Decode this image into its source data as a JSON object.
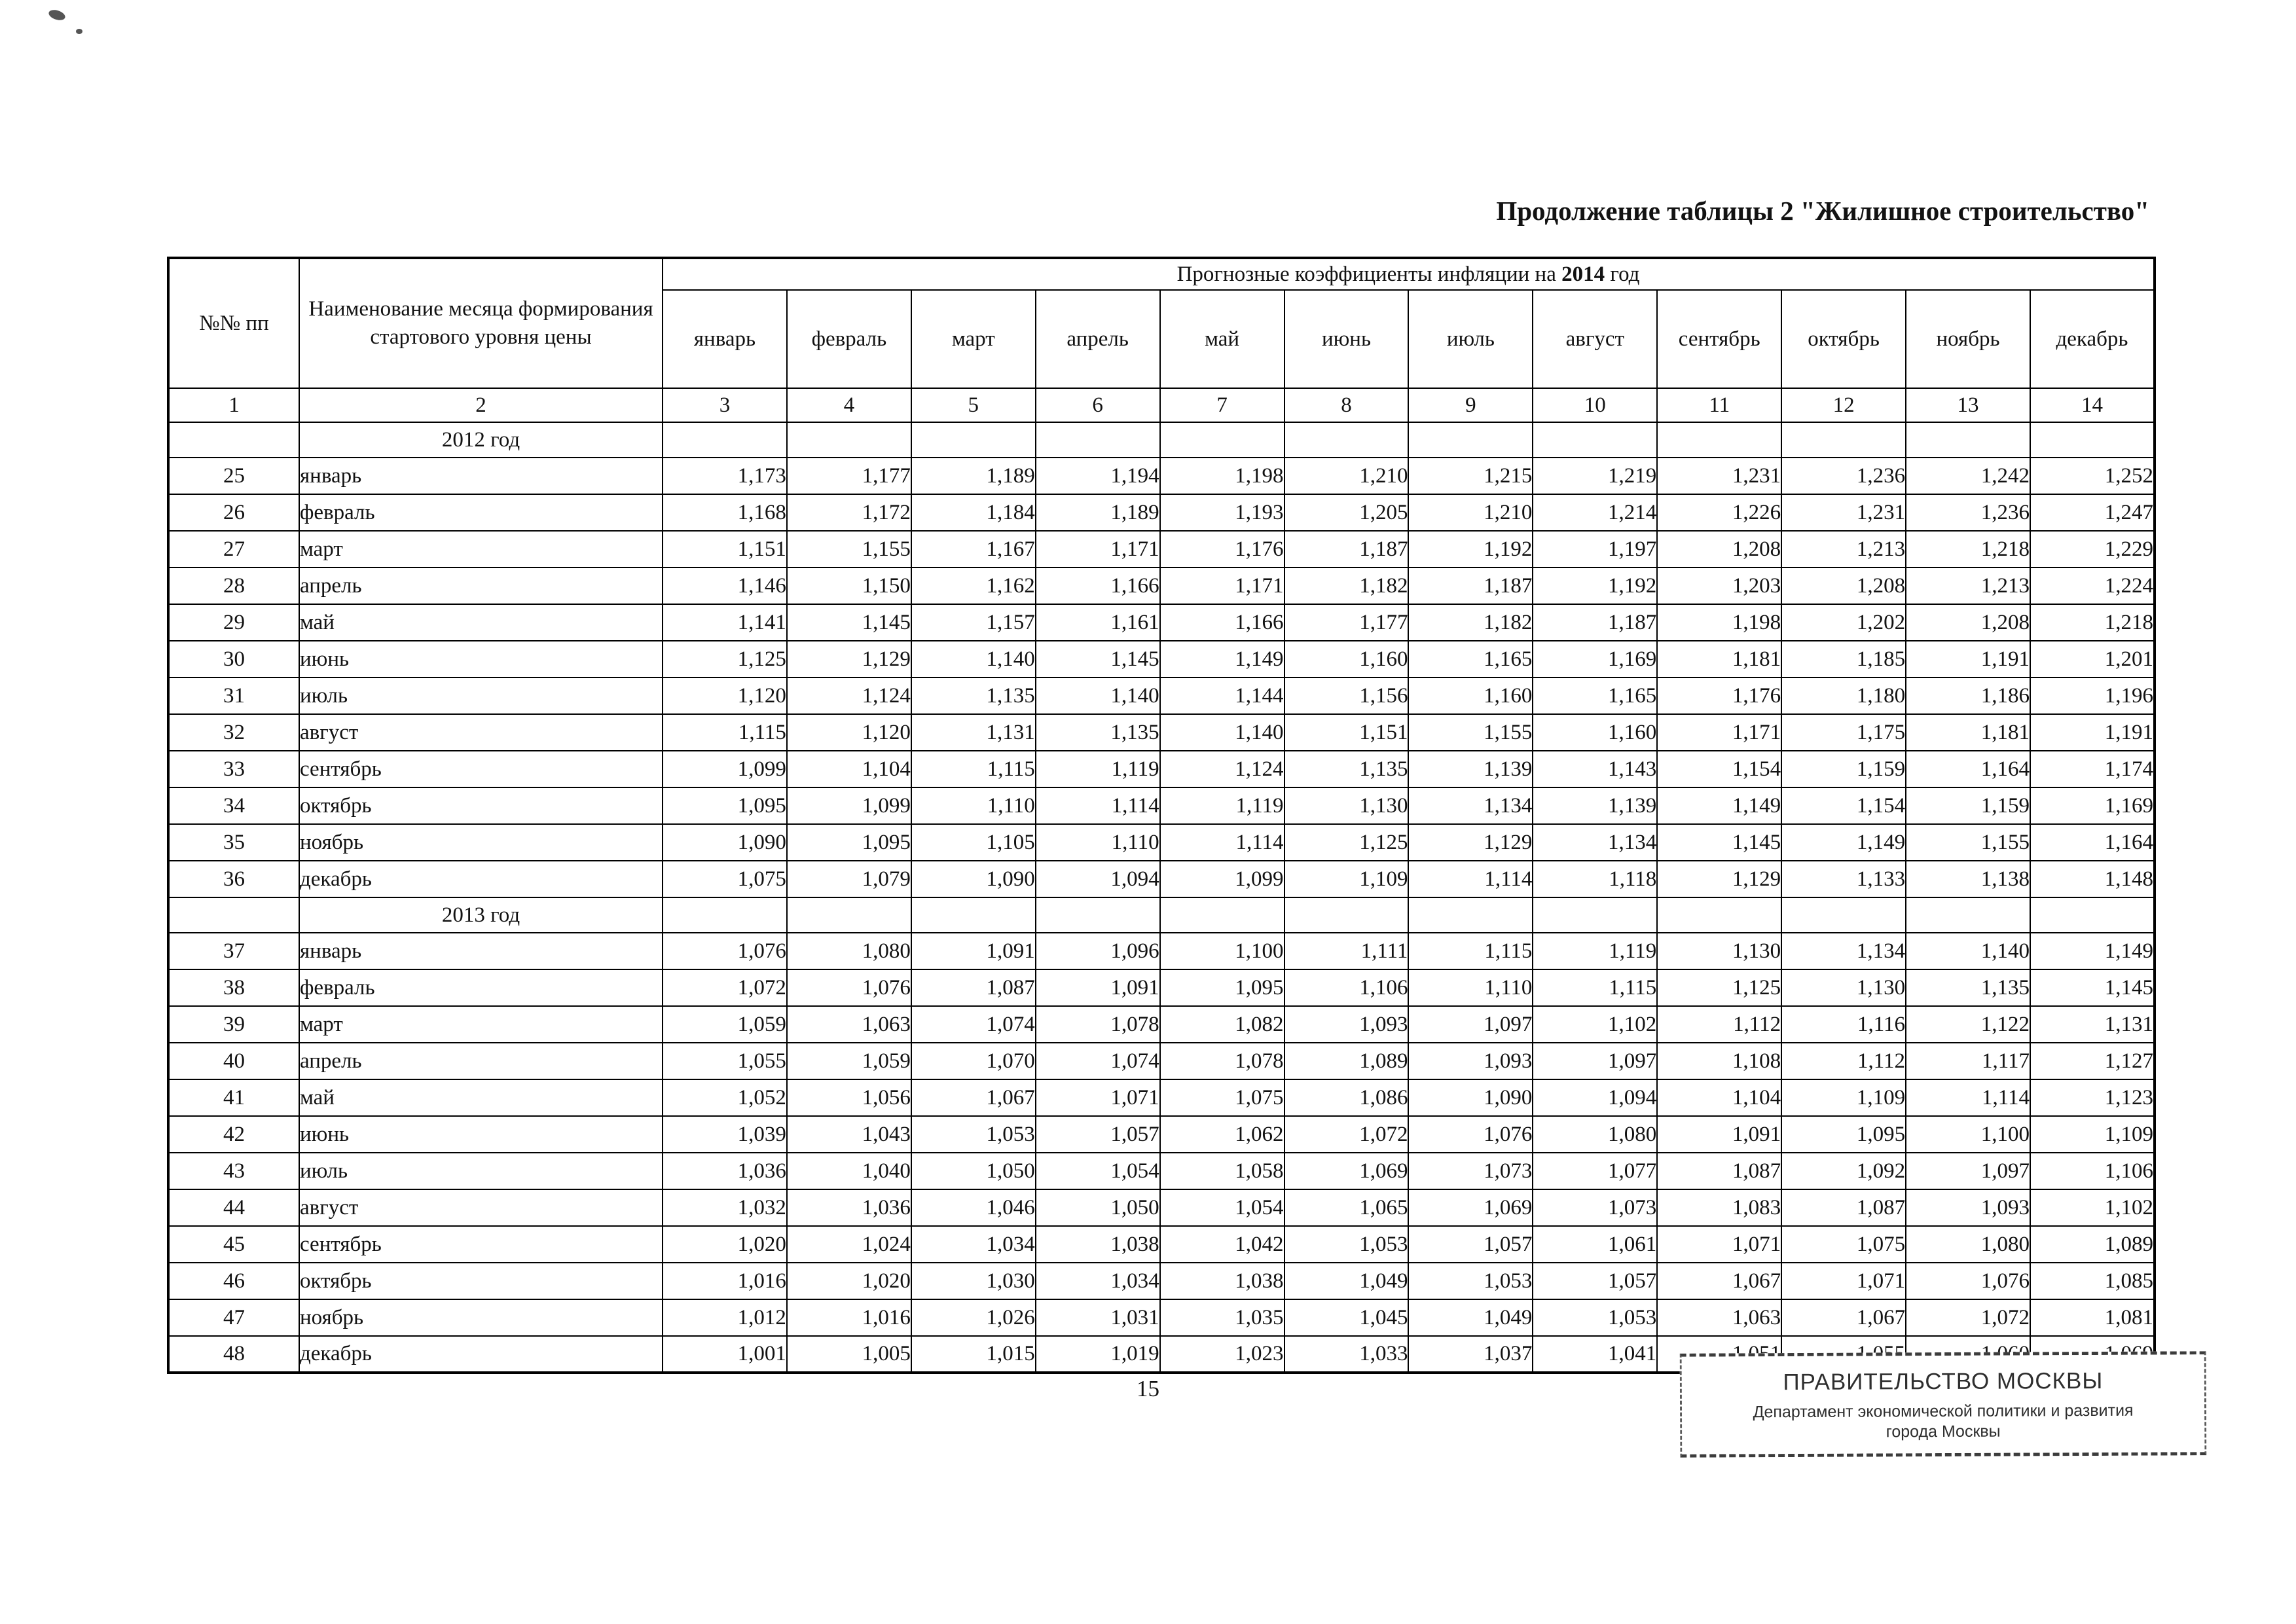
{
  "page": {
    "title": "Продолжение таблицы 2  \"Жилишное строительство\"",
    "page_number": "15"
  },
  "table": {
    "header": {
      "col_num": "№№ пп",
      "col_month": "Наименование месяца формирования стартового уровня цены",
      "group_title_prefix": "Прогнозные коэффициенты инфляции на ",
      "group_title_year": "2014",
      "group_title_suffix": " год",
      "months": [
        "январь",
        "февраль",
        "март",
        "апрель",
        "май",
        "июнь",
        "июль",
        "август",
        "сентябрь",
        "октябрь",
        "ноябрь",
        "декабрь"
      ],
      "column_numbers": [
        "1",
        "2",
        "3",
        "4",
        "5",
        "6",
        "7",
        "8",
        "9",
        "10",
        "11",
        "12",
        "13",
        "14"
      ]
    },
    "sections": [
      {
        "year_label": "2012 год",
        "rows": [
          {
            "num": "25",
            "month": "январь",
            "values": [
              "1,173",
              "1,177",
              "1,189",
              "1,194",
              "1,198",
              "1,210",
              "1,215",
              "1,219",
              "1,231",
              "1,236",
              "1,242",
              "1,252"
            ]
          },
          {
            "num": "26",
            "month": "февраль",
            "values": [
              "1,168",
              "1,172",
              "1,184",
              "1,189",
              "1,193",
              "1,205",
              "1,210",
              "1,214",
              "1,226",
              "1,231",
              "1,236",
              "1,247"
            ]
          },
          {
            "num": "27",
            "month": "март",
            "values": [
              "1,151",
              "1,155",
              "1,167",
              "1,171",
              "1,176",
              "1,187",
              "1,192",
              "1,197",
              "1,208",
              "1,213",
              "1,218",
              "1,229"
            ]
          },
          {
            "num": "28",
            "month": "апрель",
            "values": [
              "1,146",
              "1,150",
              "1,162",
              "1,166",
              "1,171",
              "1,182",
              "1,187",
              "1,192",
              "1,203",
              "1,208",
              "1,213",
              "1,224"
            ]
          },
          {
            "num": "29",
            "month": "май",
            "values": [
              "1,141",
              "1,145",
              "1,157",
              "1,161",
              "1,166",
              "1,177",
              "1,182",
              "1,187",
              "1,198",
              "1,202",
              "1,208",
              "1,218"
            ]
          },
          {
            "num": "30",
            "month": "июнь",
            "values": [
              "1,125",
              "1,129",
              "1,140",
              "1,145",
              "1,149",
              "1,160",
              "1,165",
              "1,169",
              "1,181",
              "1,185",
              "1,191",
              "1,201"
            ]
          },
          {
            "num": "31",
            "month": "июль",
            "values": [
              "1,120",
              "1,124",
              "1,135",
              "1,140",
              "1,144",
              "1,156",
              "1,160",
              "1,165",
              "1,176",
              "1,180",
              "1,186",
              "1,196"
            ]
          },
          {
            "num": "32",
            "month": "август",
            "values": [
              "1,115",
              "1,120",
              "1,131",
              "1,135",
              "1,140",
              "1,151",
              "1,155",
              "1,160",
              "1,171",
              "1,175",
              "1,181",
              "1,191"
            ]
          },
          {
            "num": "33",
            "month": "сентябрь",
            "values": [
              "1,099",
              "1,104",
              "1,115",
              "1,119",
              "1,124",
              "1,135",
              "1,139",
              "1,143",
              "1,154",
              "1,159",
              "1,164",
              "1,174"
            ]
          },
          {
            "num": "34",
            "month": "октябрь",
            "values": [
              "1,095",
              "1,099",
              "1,110",
              "1,114",
              "1,119",
              "1,130",
              "1,134",
              "1,139",
              "1,149",
              "1,154",
              "1,159",
              "1,169"
            ]
          },
          {
            "num": "35",
            "month": "ноябрь",
            "values": [
              "1,090",
              "1,095",
              "1,105",
              "1,110",
              "1,114",
              "1,125",
              "1,129",
              "1,134",
              "1,145",
              "1,149",
              "1,155",
              "1,164"
            ]
          },
          {
            "num": "36",
            "month": "декабрь",
            "values": [
              "1,075",
              "1,079",
              "1,090",
              "1,094",
              "1,099",
              "1,109",
              "1,114",
              "1,118",
              "1,129",
              "1,133",
              "1,138",
              "1,148"
            ]
          }
        ]
      },
      {
        "year_label": "2013 год",
        "rows": [
          {
            "num": "37",
            "month": "январь",
            "values": [
              "1,076",
              "1,080",
              "1,091",
              "1,096",
              "1,100",
              "1,111",
              "1,115",
              "1,119",
              "1,130",
              "1,134",
              "1,140",
              "1,149"
            ]
          },
          {
            "num": "38",
            "month": "февраль",
            "values": [
              "1,072",
              "1,076",
              "1,087",
              "1,091",
              "1,095",
              "1,106",
              "1,110",
              "1,115",
              "1,125",
              "1,130",
              "1,135",
              "1,145"
            ]
          },
          {
            "num": "39",
            "month": "март",
            "values": [
              "1,059",
              "1,063",
              "1,074",
              "1,078",
              "1,082",
              "1,093",
              "1,097",
              "1,102",
              "1,112",
              "1,116",
              "1,122",
              "1,131"
            ]
          },
          {
            "num": "40",
            "month": "апрель",
            "values": [
              "1,055",
              "1,059",
              "1,070",
              "1,074",
              "1,078",
              "1,089",
              "1,093",
              "1,097",
              "1,108",
              "1,112",
              "1,117",
              "1,127"
            ]
          },
          {
            "num": "41",
            "month": "май",
            "values": [
              "1,052",
              "1,056",
              "1,067",
              "1,071",
              "1,075",
              "1,086",
              "1,090",
              "1,094",
              "1,104",
              "1,109",
              "1,114",
              "1,123"
            ]
          },
          {
            "num": "42",
            "month": "июнь",
            "values": [
              "1,039",
              "1,043",
              "1,053",
              "1,057",
              "1,062",
              "1,072",
              "1,076",
              "1,080",
              "1,091",
              "1,095",
              "1,100",
              "1,109"
            ]
          },
          {
            "num": "43",
            "month": "июль",
            "values": [
              "1,036",
              "1,040",
              "1,050",
              "1,054",
              "1,058",
              "1,069",
              "1,073",
              "1,077",
              "1,087",
              "1,092",
              "1,097",
              "1,106"
            ]
          },
          {
            "num": "44",
            "month": "август",
            "values": [
              "1,032",
              "1,036",
              "1,046",
              "1,050",
              "1,054",
              "1,065",
              "1,069",
              "1,073",
              "1,083",
              "1,087",
              "1,093",
              "1,102"
            ]
          },
          {
            "num": "45",
            "month": "сентябрь",
            "values": [
              "1,020",
              "1,024",
              "1,034",
              "1,038",
              "1,042",
              "1,053",
              "1,057",
              "1,061",
              "1,071",
              "1,075",
              "1,080",
              "1,089"
            ]
          },
          {
            "num": "46",
            "month": "октябрь",
            "values": [
              "1,016",
              "1,020",
              "1,030",
              "1,034",
              "1,038",
              "1,049",
              "1,053",
              "1,057",
              "1,067",
              "1,071",
              "1,076",
              "1,085"
            ]
          },
          {
            "num": "47",
            "month": "ноябрь",
            "values": [
              "1,012",
              "1,016",
              "1,026",
              "1,031",
              "1,035",
              "1,045",
              "1,049",
              "1,053",
              "1,063",
              "1,067",
              "1,072",
              "1,081"
            ]
          },
          {
            "num": "48",
            "month": "декабрь",
            "values": [
              "1,001",
              "1,005",
              "1,015",
              "1,019",
              "1,023",
              "1,033",
              "1,037",
              "1,041",
              "1,051",
              "1,055",
              "1,060",
              "1,069"
            ]
          }
        ]
      }
    ]
  },
  "stamp": {
    "line1": "ПРАВИТЕЛЬСТВО МОСКВЫ",
    "line2": "Департамент экономической политики и развития",
    "line3": "города Москвы"
  }
}
